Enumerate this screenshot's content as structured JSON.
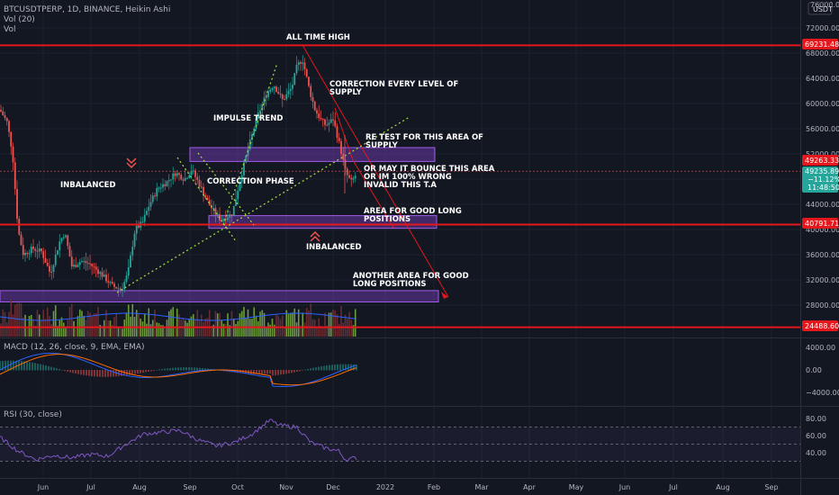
{
  "header": {
    "title": "BTCUSDTPERP, 1D, BINANCE, Heikin Ashi",
    "vol_label": "Vol (20)",
    "vol_sub": "Vol",
    "macd_label": "MACD (12, 26, close, 9, EMA, EMA)",
    "rsi_label": "RSI (30, close)"
  },
  "corner": {
    "price": "76000.00",
    "currency": "USDT"
  },
  "price_axis": {
    "ticks": [
      "72000.00",
      "68000.00",
      "64000.00",
      "60000.00",
      "56000.00",
      "52000.00",
      "48000.00",
      "44000.00",
      "40000.00",
      "36000.00",
      "32000.00",
      "28000.00"
    ],
    "badges": {
      "level_high": "69231.48",
      "current": "49263.33",
      "last_price": "49235.89",
      "change": "−11.12%",
      "countdown": "11:48:50",
      "level_mid": "40791.71",
      "level_low": "24488.60"
    }
  },
  "macd_axis": [
    "4000.00",
    "0.00",
    "−4000.00"
  ],
  "rsi_axis": [
    "80.00",
    "60.00",
    "40.00"
  ],
  "time_axis": [
    "Jun",
    "Jul",
    "Aug",
    "Sep",
    "Oct",
    "Nov",
    "Dec",
    "2022",
    "Feb",
    "Mar",
    "Apr",
    "May",
    "Jun",
    "Jul",
    "Aug",
    "Sep"
  ],
  "annotations": {
    "ath": "ALL TIME HIGH",
    "correction_supply_1": "CORRECTION EVERY LEVEL OF",
    "correction_supply_2": "SUPPLY",
    "impulse": "IMPULSE TREND",
    "retest_1": "RE TEST FOR THIS AREA OF",
    "retest_2": "SUPPLY",
    "bounce_1": "OR MAY IT BOUNCE THIS AREA",
    "bounce_2": "OR IM 100% WRONG",
    "bounce_3": "INVALID THIS T.A",
    "inbalanced_left": "INBALANCED",
    "correction_phase": "CORRECTION PHASE",
    "good_long_1": "AREA FOR GOOD LONG",
    "good_long_2": "POSITIONS",
    "inbalanced_mid": "INBALANCED",
    "another_1": "ANOTHER AREA FOR GOOD",
    "another_2": "LONG POSITIONS"
  },
  "colors": {
    "background": "#131722",
    "up": "#26a69a",
    "down": "#ef5350",
    "level_line": "#e4171d",
    "zone": "#7b3fbf",
    "trend_dotted": "#9bd640",
    "macd_line": "#2962ff",
    "signal_line": "#ff6d00",
    "rsi_line": "#7e57c2"
  },
  "chart_data": {
    "type": "candlestick",
    "symbol": "BTCUSDTPERP",
    "timeframe": "1D",
    "style": "Heikin Ashi",
    "y_range": [
      22000,
      76000
    ],
    "horizontal_levels": [
      69231.48,
      40791.71,
      24488.6
    ],
    "current_price": 49263.33,
    "last_price": 49235.89,
    "change_percent": -11.12,
    "supply_zone": [
      50800,
      53000
    ],
    "demand_zone": [
      40200,
      42200
    ],
    "lower_zone": [
      28500,
      30300
    ],
    "approx_closes": {
      "month_starts": [
        "Jun",
        "Jul",
        "Aug",
        "Sep",
        "Oct",
        "Nov",
        "Dec"
      ],
      "values": [
        36500,
        34500,
        41000,
        48500,
        45000,
        61000,
        53000
      ]
    },
    "macd_range": [
      -6000,
      6000
    ],
    "rsi_range": [
      25,
      85
    ],
    "rsi_levels": [
      70,
      50,
      30
    ]
  }
}
